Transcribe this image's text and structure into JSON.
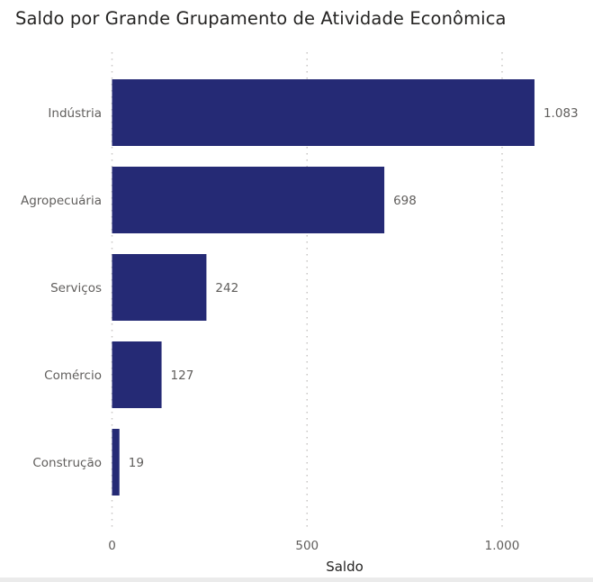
{
  "chart_data": {
    "type": "bar",
    "orientation": "horizontal",
    "title": "Saldo por Grande Grupamento de Atividade Econômica",
    "xlabel": "Saldo",
    "ylabel": "",
    "categories": [
      "Indústria",
      "Agropecuária",
      "Serviços",
      "Comércio",
      "Construção"
    ],
    "values": [
      1083,
      698,
      242,
      127,
      19
    ],
    "data_labels": [
      "1.083",
      "698",
      "242",
      "127",
      "19"
    ],
    "xlim": [
      0,
      1100
    ],
    "xticks": [
      0,
      500,
      1000
    ],
    "xtick_labels": [
      "0",
      "500",
      "1.000"
    ],
    "grid": true,
    "legend": "none",
    "bar_color": "#252A75"
  }
}
